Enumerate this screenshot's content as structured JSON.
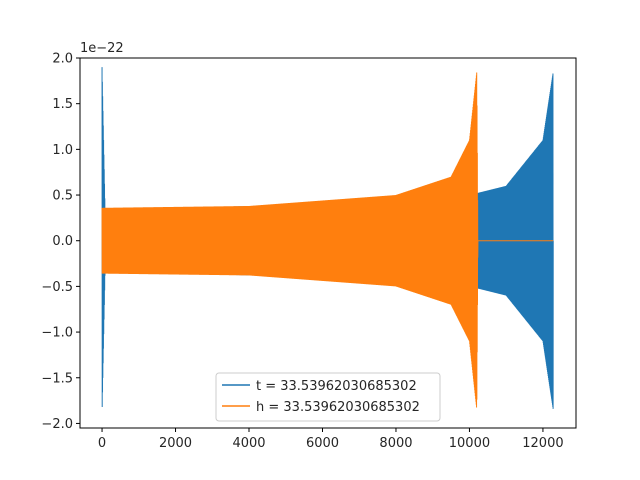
{
  "chart_data": {
    "type": "line",
    "title": "",
    "xlabel": "",
    "ylabel": "",
    "xlim": [
      -600,
      12900
    ],
    "ylim": [
      -2.05,
      2.0
    ],
    "y_offset_text": "1e−22",
    "x_ticks": [
      {
        "value": 0,
        "label": "0"
      },
      {
        "value": 2000,
        "label": "2000"
      },
      {
        "value": 4000,
        "label": "4000"
      },
      {
        "value": 6000,
        "label": "6000"
      },
      {
        "value": 8000,
        "label": "8000"
      },
      {
        "value": 10000,
        "label": "10000"
      },
      {
        "value": 12000,
        "label": "12000"
      }
    ],
    "y_ticks": [
      {
        "value": 2.0,
        "label": "2.0"
      },
      {
        "value": 1.5,
        "label": "1.5"
      },
      {
        "value": 1.0,
        "label": "1.0"
      },
      {
        "value": 0.5,
        "label": "0.5"
      },
      {
        "value": 0.0,
        "label": "0.0"
      },
      {
        "value": -0.5,
        "label": "−0.5"
      },
      {
        "value": -1.0,
        "label": "−1.0"
      },
      {
        "value": -1.5,
        "label": "−1.5"
      },
      {
        "value": -2.0,
        "label": "−2.0"
      }
    ],
    "grid": false,
    "legend_position": "lower-center",
    "series": [
      {
        "name": "t = 33.53962030685302",
        "color": "#1f77b4",
        "description_points": [
          {
            "x": 0,
            "amplitude": 1.9
          },
          {
            "x": 100,
            "amplitude": 0.0
          },
          {
            "x": 2100,
            "amplitude": 0.0
          },
          {
            "x": 2100,
            "amplitude": 0.36
          },
          {
            "x": 6000,
            "amplitude": 0.4
          },
          {
            "x": 10000,
            "amplitude": 0.5
          },
          {
            "x": 11000,
            "amplitude": 0.6
          },
          {
            "x": 12000,
            "amplitude": 1.1
          },
          {
            "x": 12280,
            "amplitude": 1.85
          }
        ]
      },
      {
        "name": "h = 33.53962030685302",
        "color": "#ff7f0e",
        "description_points": [
          {
            "x": 0,
            "amplitude": 0.36
          },
          {
            "x": 4000,
            "amplitude": 0.38
          },
          {
            "x": 8000,
            "amplitude": 0.5
          },
          {
            "x": 9500,
            "amplitude": 0.7
          },
          {
            "x": 10000,
            "amplitude": 1.1
          },
          {
            "x": 10200,
            "amplitude": 1.85
          },
          {
            "x": 10230,
            "amplitude": 0.0
          },
          {
            "x": 12280,
            "amplitude": 0.0
          }
        ]
      }
    ]
  }
}
